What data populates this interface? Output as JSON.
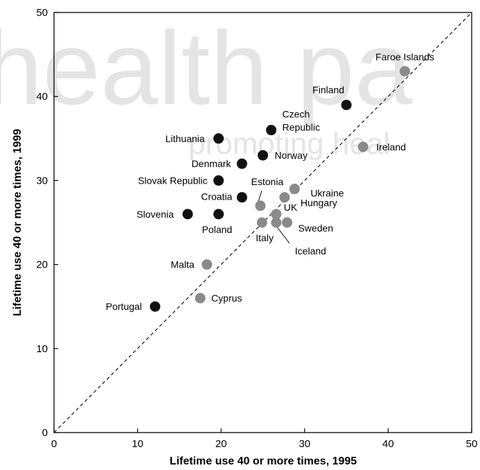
{
  "watermark": {
    "main": "health pa",
    "sub": "promoting heal"
  },
  "chart_data": {
    "type": "scatter",
    "xlabel": "Lifetime use 40 or more times, 1995",
    "ylabel": "Lifetime use 40 or more times, 1999",
    "xlim": [
      0,
      50
    ],
    "ylim": [
      0,
      50
    ],
    "xticks": [
      0,
      10,
      20,
      30,
      40,
      50
    ],
    "yticks": [
      0,
      10,
      20,
      30,
      40,
      50
    ],
    "reference_line": "y = x (dashed)",
    "colors": {
      "dark": "#111111",
      "grey": "#8a8a8a"
    },
    "points": [
      {
        "label": "Faroe Islands",
        "x": 42.0,
        "y": 43.0,
        "shade": "grey"
      },
      {
        "label": "Finland",
        "x": 35.0,
        "y": 39.0,
        "shade": "dark"
      },
      {
        "label": "Ireland",
        "x": 37.0,
        "y": 34.0,
        "shade": "grey"
      },
      {
        "label": "Czech Republic",
        "x": 26.0,
        "y": 36.0,
        "shade": "dark"
      },
      {
        "label": "Lithuania",
        "x": 19.7,
        "y": 35.0,
        "shade": "dark"
      },
      {
        "label": "Norway",
        "x": 25.0,
        "y": 33.0,
        "shade": "dark"
      },
      {
        "label": "Denmark",
        "x": 22.5,
        "y": 32.0,
        "shade": "dark"
      },
      {
        "label": "Slovak Republic",
        "x": 19.7,
        "y": 30.0,
        "shade": "dark"
      },
      {
        "label": "Croatia",
        "x": 22.5,
        "y": 28.0,
        "shade": "dark"
      },
      {
        "label": "Estonia",
        "x": 24.7,
        "y": 27.0,
        "shade": "grey"
      },
      {
        "label": "Ukraine",
        "x": 28.8,
        "y": 29.0,
        "shade": "grey"
      },
      {
        "label": "Hungary",
        "x": 27.6,
        "y": 28.0,
        "shade": "grey"
      },
      {
        "label": "UK",
        "x": 26.6,
        "y": 26.0,
        "shade": "grey"
      },
      {
        "label": "Sweden",
        "x": 27.9,
        "y": 25.0,
        "shade": "grey"
      },
      {
        "label": "Iceland",
        "x": 26.6,
        "y": 25.0,
        "shade": "grey"
      },
      {
        "label": "Italy",
        "x": 24.9,
        "y": 25.0,
        "shade": "grey"
      },
      {
        "label": "Slovenia",
        "x": 16.0,
        "y": 26.0,
        "shade": "dark"
      },
      {
        "label": "Poland",
        "x": 19.7,
        "y": 26.0,
        "shade": "dark"
      },
      {
        "label": "Malta",
        "x": 18.3,
        "y": 20.0,
        "shade": "grey"
      },
      {
        "label": "Cyprus",
        "x": 17.5,
        "y": 16.0,
        "shade": "grey"
      },
      {
        "label": "Portugal",
        "x": 12.1,
        "y": 15.0,
        "shade": "dark"
      }
    ]
  }
}
